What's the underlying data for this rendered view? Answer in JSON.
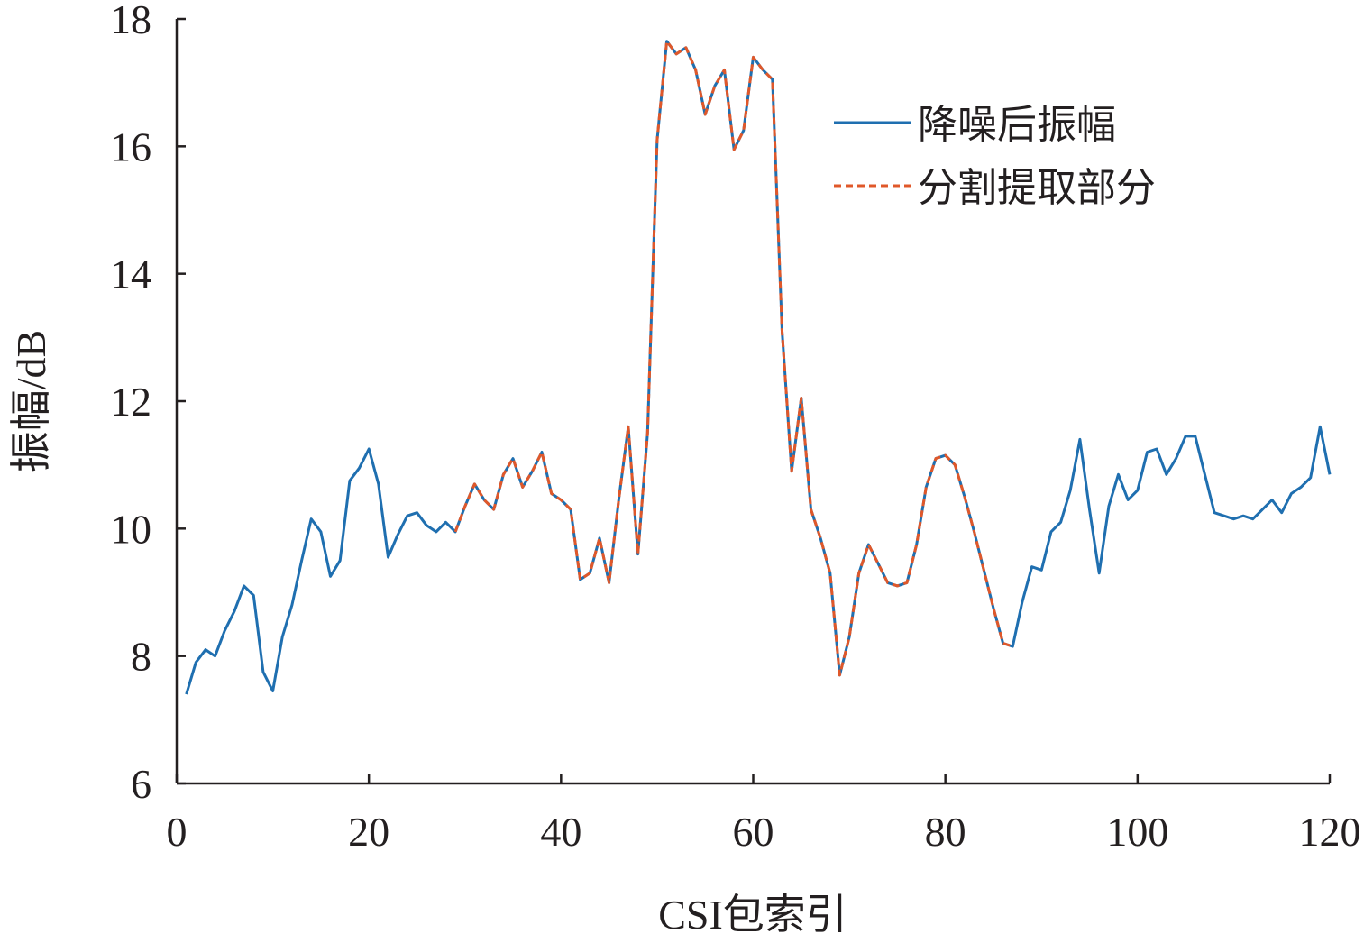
{
  "chart_data": {
    "type": "line",
    "title": "",
    "xlabel": "CSI包索引",
    "ylabel": "振幅/dB",
    "xlim": [
      0,
      120
    ],
    "ylim": [
      6,
      18
    ],
    "x_ticks": [
      0,
      20,
      40,
      60,
      80,
      100,
      120
    ],
    "y_ticks": [
      6,
      8,
      10,
      12,
      14,
      16,
      18
    ],
    "grid": false,
    "legend_position": "top-right",
    "series": [
      {
        "name": "降噪后振幅",
        "color": "#1f6fb0",
        "line_style": "solid",
        "x": [
          1,
          2,
          3,
          4,
          5,
          6,
          7,
          8,
          9,
          10,
          11,
          12,
          13,
          14,
          15,
          16,
          17,
          18,
          19,
          20,
          21,
          22,
          23,
          24,
          25,
          26,
          27,
          28,
          29,
          30,
          31,
          32,
          33,
          34,
          35,
          36,
          37,
          38,
          39,
          40,
          41,
          42,
          43,
          44,
          45,
          46,
          47,
          48,
          49,
          50,
          51,
          52,
          53,
          54,
          55,
          56,
          57,
          58,
          59,
          60,
          61,
          62,
          63,
          64,
          65,
          66,
          67,
          68,
          69,
          70,
          71,
          72,
          73,
          74,
          75,
          76,
          77,
          78,
          79,
          80,
          81,
          82,
          83,
          84,
          85,
          86,
          87,
          88,
          89,
          90,
          91,
          92,
          93,
          94,
          95,
          96,
          97,
          98,
          99,
          100,
          101,
          102,
          103,
          104,
          105,
          106,
          107,
          108,
          109,
          110,
          111,
          112,
          113,
          114,
          115,
          116,
          117,
          118,
          119,
          120
        ],
        "values": [
          7.4,
          7.9,
          8.1,
          8.0,
          8.4,
          8.7,
          9.1,
          8.95,
          7.75,
          7.45,
          8.3,
          8.8,
          9.5,
          10.15,
          9.95,
          9.25,
          9.5,
          10.75,
          10.95,
          11.25,
          10.7,
          9.55,
          9.9,
          10.2,
          10.25,
          10.05,
          9.95,
          10.1,
          9.95,
          10.35,
          10.7,
          10.45,
          10.3,
          10.85,
          11.1,
          10.65,
          10.9,
          11.2,
          10.55,
          10.45,
          10.3,
          9.2,
          9.3,
          9.85,
          9.15,
          10.45,
          11.6,
          9.6,
          11.5,
          16.1,
          17.65,
          17.45,
          17.55,
          17.2,
          16.5,
          16.95,
          17.2,
          15.95,
          16.25,
          17.4,
          17.2,
          17.05,
          13.1,
          10.9,
          12.05,
          10.3,
          9.85,
          9.3,
          7.7,
          8.3,
          9.3,
          9.75,
          9.45,
          9.15,
          9.1,
          9.15,
          9.75,
          10.65,
          11.1,
          11.15,
          11.0,
          10.5,
          9.95,
          9.35,
          8.75,
          8.2,
          8.15,
          8.85,
          9.4,
          9.35,
          9.95,
          10.1,
          10.6,
          11.4,
          10.3,
          9.3,
          10.35,
          10.85,
          10.45,
          10.6,
          11.2,
          11.25,
          10.85,
          11.1,
          11.45,
          11.45,
          10.85,
          10.25,
          10.2,
          10.15,
          10.2,
          10.15,
          10.3,
          10.45,
          10.25,
          10.55,
          10.65,
          10.8,
          11.6,
          10.85
        ]
      },
      {
        "name": "分割提取部分",
        "color": "#e0582a",
        "line_style": "dashed",
        "x": [
          29,
          30,
          31,
          32,
          33,
          34,
          35,
          36,
          37,
          38,
          39,
          40,
          41,
          42,
          43,
          44,
          45,
          46,
          47,
          48,
          49,
          50,
          51,
          52,
          53,
          54,
          55,
          56,
          57,
          58,
          59,
          60,
          61,
          62,
          63,
          64,
          65,
          66,
          67,
          68,
          69,
          70,
          71,
          72,
          73,
          74,
          75,
          76,
          77,
          78,
          79,
          80,
          81,
          82,
          83,
          84,
          85,
          86,
          87
        ],
        "values": [
          9.95,
          10.35,
          10.7,
          10.45,
          10.3,
          10.85,
          11.1,
          10.65,
          10.9,
          11.2,
          10.55,
          10.45,
          10.3,
          9.2,
          9.3,
          9.85,
          9.15,
          10.45,
          11.6,
          9.6,
          11.5,
          16.1,
          17.65,
          17.45,
          17.55,
          17.2,
          16.5,
          16.95,
          17.2,
          15.95,
          16.25,
          17.4,
          17.2,
          17.05,
          13.1,
          10.9,
          12.05,
          10.3,
          9.85,
          9.3,
          7.7,
          8.3,
          9.3,
          9.75,
          9.45,
          9.15,
          9.1,
          9.15,
          9.75,
          10.65,
          11.1,
          11.15,
          11.0,
          10.5,
          9.95,
          9.35,
          8.75,
          8.2,
          8.15
        ]
      }
    ]
  }
}
